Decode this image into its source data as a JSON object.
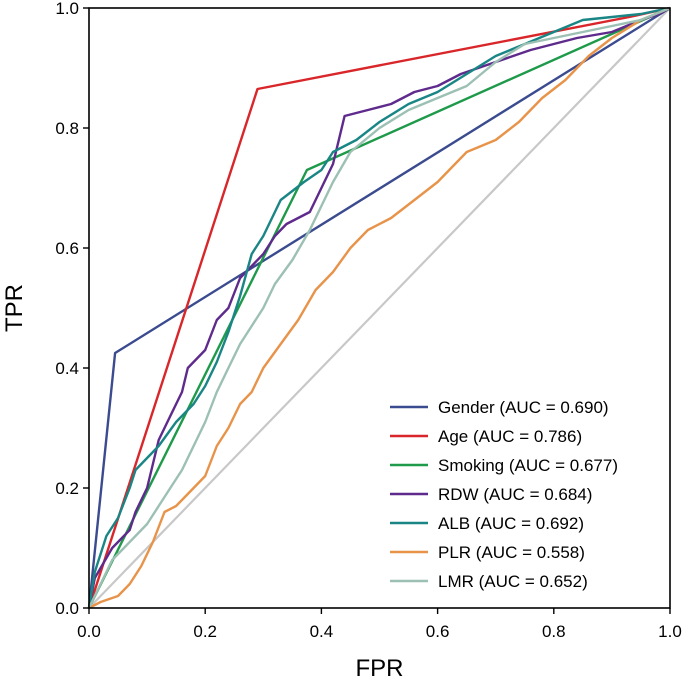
{
  "chart_data": {
    "type": "line",
    "title": "",
    "xlabel": "FPR",
    "ylabel": "TPR",
    "xlim": [
      0,
      1
    ],
    "ylim": [
      0,
      1
    ],
    "xticks": [
      "0.0",
      "0.2",
      "0.4",
      "0.6",
      "0.8",
      "1.0"
    ],
    "yticks": [
      "0.0",
      "0.2",
      "0.4",
      "0.6",
      "0.8",
      "1.0"
    ],
    "grid": false,
    "legend_position": "lower-right",
    "diagonal": {
      "x": [
        0,
        1
      ],
      "y": [
        0,
        1
      ],
      "color": "#c8c8c8"
    },
    "series": [
      {
        "name": "Gender (AUC = 0.690)",
        "color": "#3b4b8f",
        "x": [
          0,
          0.045,
          1.0
        ],
        "y": [
          0,
          0.425,
          1.0
        ]
      },
      {
        "name": "Age (AUC = 0.786)",
        "color": "#d9262a",
        "x": [
          0,
          0.29,
          0.93,
          1.0
        ],
        "y": [
          0,
          0.865,
          0.985,
          1.0
        ]
      },
      {
        "name": "Smoking (AUC = 0.677)",
        "color": "#1e9a4a",
        "x": [
          0,
          0.375,
          1.0
        ],
        "y": [
          0,
          0.73,
          1.0
        ]
      },
      {
        "name": "RDW (AUC = 0.684)",
        "color": "#5e2a8c",
        "x": [
          0,
          0.01,
          0.04,
          0.07,
          0.08,
          0.1,
          0.12,
          0.14,
          0.16,
          0.17,
          0.2,
          0.22,
          0.24,
          0.26,
          0.3,
          0.32,
          0.34,
          0.38,
          0.4,
          0.42,
          0.44,
          0.48,
          0.52,
          0.56,
          0.6,
          0.64,
          0.7,
          0.76,
          0.8,
          0.84,
          0.9,
          0.95,
          0.98,
          1.0
        ],
        "y": [
          0,
          0.05,
          0.1,
          0.13,
          0.16,
          0.2,
          0.28,
          0.32,
          0.36,
          0.4,
          0.43,
          0.48,
          0.5,
          0.55,
          0.59,
          0.62,
          0.64,
          0.66,
          0.7,
          0.74,
          0.82,
          0.83,
          0.84,
          0.86,
          0.87,
          0.89,
          0.91,
          0.93,
          0.94,
          0.95,
          0.96,
          0.98,
          0.99,
          1.0
        ]
      },
      {
        "name": "ALB (AUC = 0.692)",
        "color": "#1a8585",
        "x": [
          0,
          0.01,
          0.03,
          0.05,
          0.07,
          0.08,
          0.1,
          0.12,
          0.15,
          0.18,
          0.2,
          0.22,
          0.24,
          0.26,
          0.28,
          0.3,
          0.33,
          0.37,
          0.4,
          0.42,
          0.44,
          0.46,
          0.5,
          0.55,
          0.6,
          0.65,
          0.7,
          0.75,
          0.8,
          0.85,
          0.9,
          0.95,
          1.0
        ],
        "y": [
          0,
          0.06,
          0.12,
          0.15,
          0.2,
          0.23,
          0.25,
          0.27,
          0.31,
          0.34,
          0.37,
          0.41,
          0.46,
          0.52,
          0.59,
          0.62,
          0.68,
          0.71,
          0.73,
          0.76,
          0.77,
          0.78,
          0.81,
          0.84,
          0.86,
          0.89,
          0.92,
          0.94,
          0.96,
          0.98,
          0.985,
          0.99,
          1.0
        ]
      },
      {
        "name": "PLR (AUC = 0.558)",
        "color": "#e8934a",
        "x": [
          0,
          0.02,
          0.05,
          0.07,
          0.09,
          0.11,
          0.13,
          0.15,
          0.18,
          0.2,
          0.22,
          0.24,
          0.26,
          0.28,
          0.3,
          0.33,
          0.36,
          0.39,
          0.42,
          0.45,
          0.48,
          0.52,
          0.56,
          0.6,
          0.65,
          0.7,
          0.74,
          0.78,
          0.82,
          0.86,
          0.9,
          0.95,
          1.0
        ],
        "y": [
          0,
          0.01,
          0.02,
          0.04,
          0.07,
          0.11,
          0.16,
          0.17,
          0.2,
          0.22,
          0.27,
          0.3,
          0.34,
          0.36,
          0.4,
          0.44,
          0.48,
          0.53,
          0.56,
          0.6,
          0.63,
          0.65,
          0.68,
          0.71,
          0.76,
          0.78,
          0.81,
          0.85,
          0.88,
          0.92,
          0.95,
          0.98,
          1.0
        ]
      },
      {
        "name": "LMR (AUC = 0.652)",
        "color": "#9dc0b4",
        "x": [
          0,
          0.02,
          0.04,
          0.06,
          0.08,
          0.1,
          0.12,
          0.14,
          0.16,
          0.18,
          0.2,
          0.22,
          0.24,
          0.26,
          0.28,
          0.3,
          0.32,
          0.35,
          0.38,
          0.4,
          0.42,
          0.45,
          0.5,
          0.55,
          0.6,
          0.65,
          0.7,
          0.75,
          0.8,
          0.85,
          0.9,
          0.95,
          1.0
        ],
        "y": [
          0,
          0.04,
          0.08,
          0.1,
          0.12,
          0.14,
          0.17,
          0.2,
          0.23,
          0.27,
          0.31,
          0.36,
          0.4,
          0.44,
          0.47,
          0.5,
          0.54,
          0.58,
          0.63,
          0.67,
          0.71,
          0.76,
          0.8,
          0.83,
          0.85,
          0.87,
          0.91,
          0.94,
          0.95,
          0.96,
          0.97,
          0.98,
          1.0
        ]
      }
    ]
  }
}
